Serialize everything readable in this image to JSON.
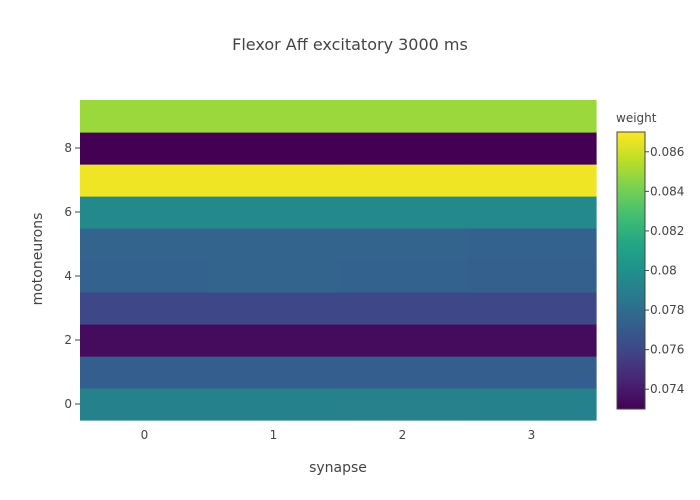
{
  "chart_data": {
    "type": "heatmap",
    "title": "Flexor Aff excitatory 3000 ms",
    "xlabel": "synapse",
    "ylabel": "motoneurons",
    "x": [
      0,
      1,
      2,
      3
    ],
    "y": [
      0,
      1,
      2,
      3,
      4,
      5,
      6,
      7,
      8,
      9
    ],
    "x_ticks": [
      "0",
      "1",
      "2",
      "3"
    ],
    "y_ticks": [
      "0",
      "2",
      "4",
      "6",
      "8"
    ],
    "z": [
      [
        0.0792,
        0.0792,
        0.0791,
        0.0792
      ],
      [
        0.0772,
        0.0772,
        0.0772,
        0.0772
      ],
      [
        0.0734,
        0.0734,
        0.0734,
        0.0734
      ],
      [
        0.076,
        0.076,
        0.076,
        0.076
      ],
      [
        0.0774,
        0.0775,
        0.0774,
        0.0773
      ],
      [
        0.0775,
        0.0775,
        0.0775,
        0.0774
      ],
      [
        0.0796,
        0.0796,
        0.0796,
        0.0796
      ],
      [
        0.0867,
        0.0867,
        0.0867,
        0.0867
      ],
      [
        0.073,
        0.073,
        0.073,
        0.073
      ],
      [
        0.0849,
        0.0849,
        0.0849,
        0.0849
      ]
    ],
    "colorscale": "viridis",
    "zmin": 0.073,
    "zmax": 0.087,
    "colorbar": {
      "title": "weight",
      "ticks": [
        "0.074",
        "0.076",
        "0.078",
        "0.08",
        "0.082",
        "0.084",
        "0.086"
      ]
    },
    "grid": false,
    "legend": "colorbar-right"
  }
}
